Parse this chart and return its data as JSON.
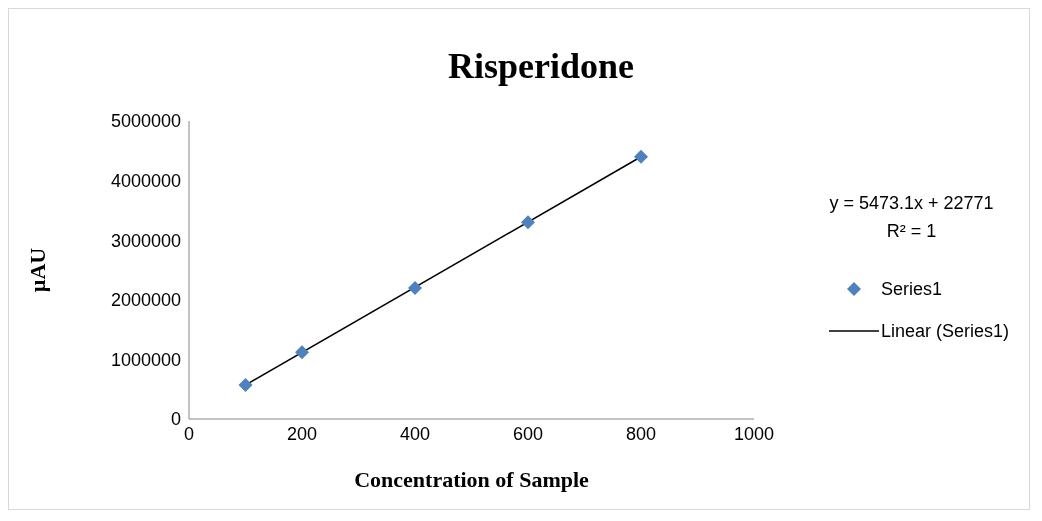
{
  "chart_data": {
    "type": "scatter",
    "title": "Risperidone",
    "xlabel": "Concentration of Sample",
    "ylabel": "µAU",
    "xlim": [
      0,
      1000
    ],
    "xticks": [
      0,
      200,
      400,
      600,
      800,
      1000
    ],
    "ylim": [
      0,
      5000000
    ],
    "yticks": [
      0,
      1000000,
      2000000,
      3000000,
      4000000,
      5000000
    ],
    "legend": "right",
    "marker": "diamond",
    "annotations": [
      "y = 5473.1x + 22771",
      "R² = 1"
    ],
    "series": [
      {
        "name": "Series1",
        "color": "#4f81bd",
        "x": [
          100,
          200,
          400,
          600,
          800
        ],
        "values": [
          570000,
          1120000,
          2200000,
          3300000,
          4400000
        ]
      },
      {
        "name": "Linear (Series1)",
        "type": "line",
        "color": "#000000",
        "marker": "none",
        "x": [
          100,
          800
        ],
        "values": [
          570000,
          4400000
        ]
      }
    ]
  }
}
